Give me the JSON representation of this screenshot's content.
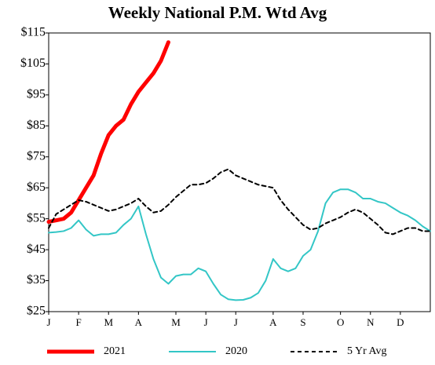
{
  "chart_data": {
    "type": "line",
    "title": "Weekly National P.M. Wtd Avg",
    "x": [
      1,
      2,
      3,
      4,
      5,
      6,
      7,
      8,
      9,
      10,
      11,
      12,
      13,
      14,
      15,
      16,
      17,
      18,
      19,
      20,
      21,
      22,
      23,
      24,
      25,
      26,
      27,
      28,
      29,
      30,
      31,
      32,
      33,
      34,
      35,
      36,
      37,
      38,
      39,
      40,
      41,
      42,
      43,
      44,
      45,
      46,
      47,
      48,
      49,
      50,
      51,
      52
    ],
    "xlim": [
      1,
      52
    ],
    "xticks": [
      {
        "value": 1,
        "label": "J"
      },
      {
        "value": 5,
        "label": "F"
      },
      {
        "value": 9,
        "label": "M"
      },
      {
        "value": 13,
        "label": "A"
      },
      {
        "value": 18,
        "label": "M"
      },
      {
        "value": 22,
        "label": "J"
      },
      {
        "value": 26,
        "label": "J"
      },
      {
        "value": 31,
        "label": "A"
      },
      {
        "value": 35,
        "label": "S"
      },
      {
        "value": 40,
        "label": "O"
      },
      {
        "value": 44,
        "label": "N"
      },
      {
        "value": 48,
        "label": "D"
      }
    ],
    "ylim": [
      25,
      115
    ],
    "yticks": [
      {
        "value": 25,
        "label": "$25"
      },
      {
        "value": 35,
        "label": "$35"
      },
      {
        "value": 45,
        "label": "$45"
      },
      {
        "value": 55,
        "label": "$55"
      },
      {
        "value": 65,
        "label": "$65"
      },
      {
        "value": 75,
        "label": "$75"
      },
      {
        "value": 85,
        "label": "$85"
      },
      {
        "value": 95,
        "label": "$95"
      },
      {
        "value": 105,
        "label": "$105"
      },
      {
        "value": 115,
        "label": "$115"
      }
    ],
    "legend": "bottom",
    "series": [
      {
        "name": "2021",
        "color": "#ff0000",
        "width": 5,
        "dashed": false,
        "values": [
          54,
          54.5,
          55,
          57,
          61,
          65,
          69,
          76,
          82,
          85,
          87,
          92,
          96,
          99,
          102,
          106,
          112,
          null,
          null,
          null,
          null,
          null,
          null,
          null,
          null,
          null,
          null,
          null,
          null,
          null,
          null,
          null,
          null,
          null,
          null,
          null,
          null,
          null,
          null,
          null,
          null,
          null,
          null,
          null,
          null,
          null,
          null,
          null,
          null,
          null,
          null,
          null
        ]
      },
      {
        "name": "2020",
        "color": "#33c6c6",
        "width": 2,
        "dashed": false,
        "values": [
          50.5,
          50.7,
          51,
          52,
          54.5,
          51.5,
          49.5,
          50,
          50,
          50.5,
          53,
          55,
          59,
          50,
          42,
          36,
          34,
          36.5,
          37,
          37,
          39,
          38,
          34,
          30.5,
          29,
          28.7,
          28.8,
          29.5,
          31,
          35,
          42,
          39,
          38,
          39,
          43,
          45,
          51,
          60,
          63.5,
          64.5,
          64.5,
          63.5,
          61.5,
          61.5,
          60.5,
          60,
          58.5,
          57,
          56,
          54.5,
          52.5,
          51
        ]
      },
      {
        "name": "5 Yr Avg",
        "color": "#000000",
        "width": 2,
        "dashed": true,
        "values": [
          52,
          56.5,
          58,
          59.5,
          61,
          60.5,
          59.5,
          58.5,
          57.5,
          58,
          59,
          60,
          61.5,
          59,
          57,
          57.5,
          59.5,
          62,
          64,
          66,
          66,
          66.5,
          68,
          70,
          71,
          69,
          68,
          67,
          66,
          65.5,
          65,
          61,
          58,
          55.5,
          53,
          51.5,
          52,
          53.5,
          54.5,
          55.5,
          57,
          58,
          57,
          55,
          53,
          50.5,
          50,
          51,
          52,
          52,
          51,
          51
        ]
      }
    ]
  }
}
